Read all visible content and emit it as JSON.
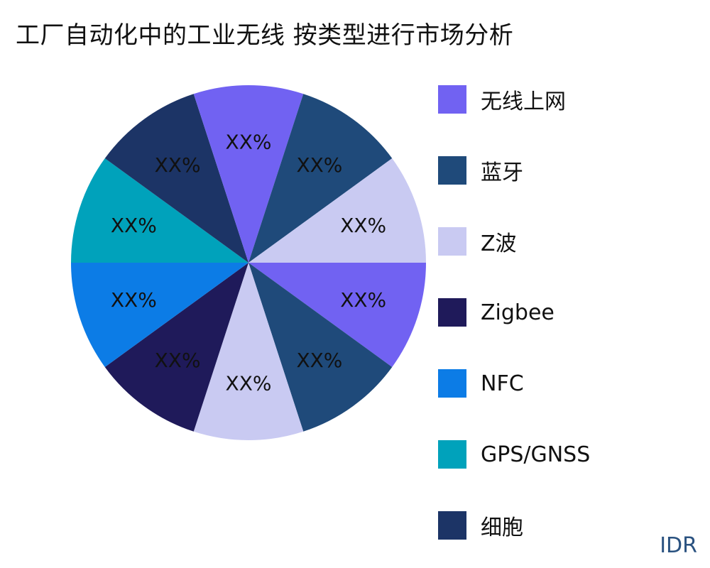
{
  "chart_data": {
    "type": "pie",
    "title": "工厂自动化中的工业无线 按类型进行市场分析",
    "start_angle_deg": 0,
    "direction": "clockwise",
    "legend_position": "right",
    "slices": [
      {
        "category": "无线上网",
        "value": 10,
        "label": "XX%",
        "color": "#7162f2"
      },
      {
        "category": "蓝牙",
        "value": 10,
        "label": "XX%",
        "color": "#1f4a7a"
      },
      {
        "category": "Z波",
        "value": 10,
        "label": "XX%",
        "color": "#c9caf2"
      },
      {
        "category": "Zigbee",
        "value": 10,
        "label": "XX%",
        "color": "#1f1a5a"
      },
      {
        "category": "NFC",
        "value": 10,
        "label": "XX%",
        "color": "#0c7ce6"
      },
      {
        "category": "GPS/GNSS",
        "value": 10,
        "label": "XX%",
        "color": "#00a2bb"
      },
      {
        "category": "细胞",
        "value": 10,
        "label": "XX%",
        "color": "#1c3466"
      },
      {
        "category": "无线上网",
        "value": 10,
        "label": "XX%",
        "color": "#7162f2"
      },
      {
        "category": "蓝牙",
        "value": 10,
        "label": "XX%",
        "color": "#1f4a7a"
      },
      {
        "category": "Z波",
        "value": 10,
        "label": "XX%",
        "color": "#c9caf2"
      }
    ],
    "legend": [
      {
        "label": "无线上网",
        "color": "#7162f2"
      },
      {
        "label": "蓝牙",
        "color": "#1f4a7a"
      },
      {
        "label": "Z波",
        "color": "#c9caf2"
      },
      {
        "label": "Zigbee",
        "color": "#1f1a5a"
      },
      {
        "label": "NFC",
        "color": "#0c7ce6"
      },
      {
        "label": "GPS/GNSS",
        "color": "#00a2bb"
      },
      {
        "label": "细胞",
        "color": "#1c3466"
      }
    ]
  },
  "watermark": "IDR"
}
